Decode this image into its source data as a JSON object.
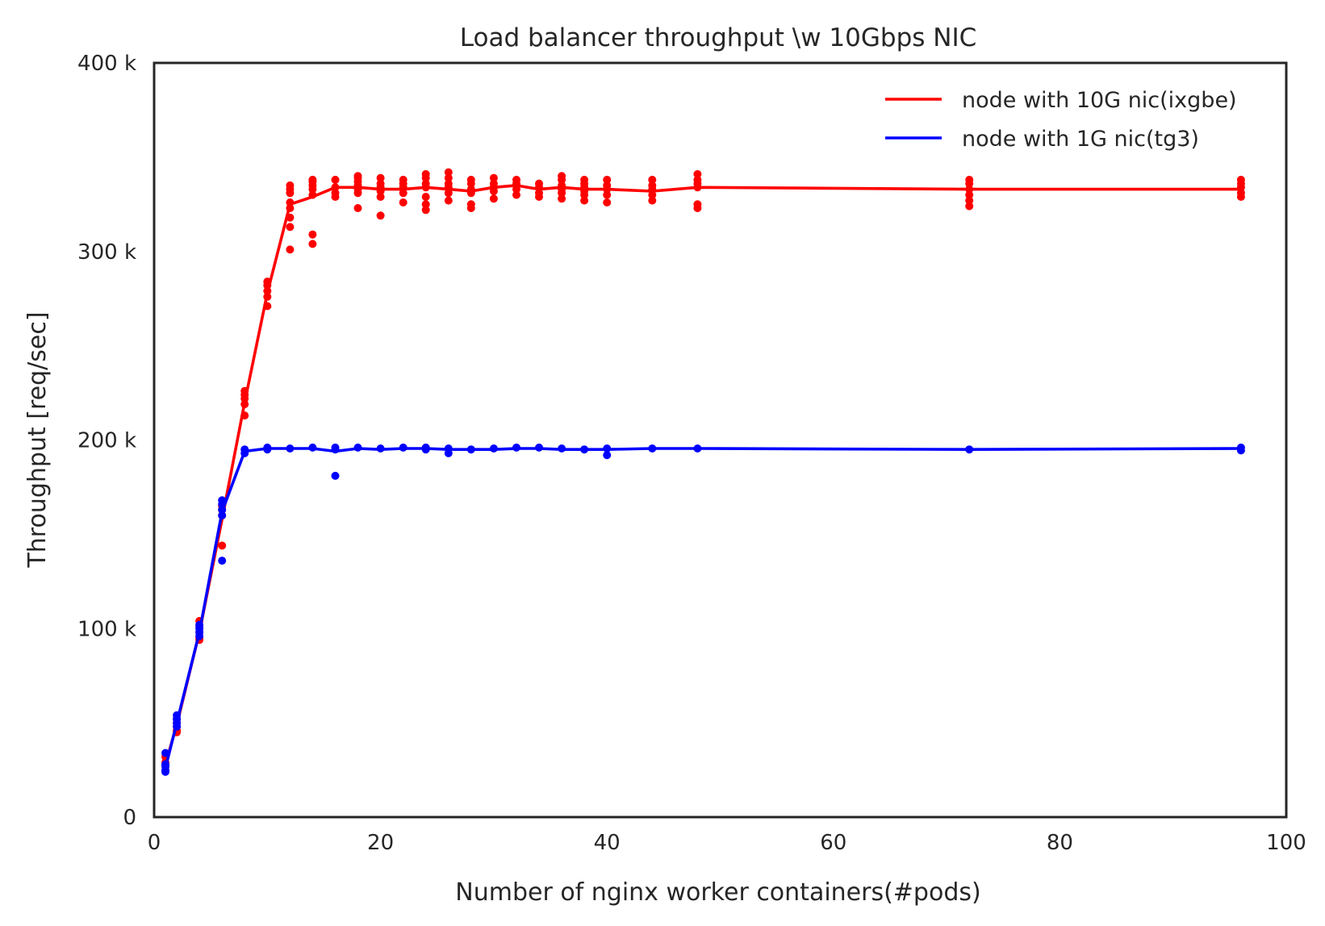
{
  "chart_data": {
    "type": "scatter",
    "title": "Load balancer throughput \\w 10Gbps NIC",
    "xlabel": "Number of nginx worker containers(#pods)",
    "ylabel": "Throughput [req/sec]",
    "xlim": [
      0,
      100
    ],
    "ylim": [
      0,
      400000
    ],
    "xticks": [
      0,
      20,
      40,
      60,
      80,
      100
    ],
    "xtick_labels": [
      "0",
      "20",
      "40",
      "60",
      "80",
      "100"
    ],
    "yticks": [
      0,
      100000,
      200000,
      300000,
      400000
    ],
    "ytick_labels": [
      "0",
      "100 k",
      "200 k",
      "300 k",
      "400 k"
    ],
    "grid": false,
    "legend_position": "top-right",
    "series": [
      {
        "name": "node with 10G nic(ixgbe)",
        "color": "#ff0000",
        "line": {
          "x": [
            1,
            2,
            4,
            6,
            8,
            10,
            12,
            14,
            16,
            18,
            20,
            22,
            24,
            26,
            28,
            30,
            32,
            34,
            36,
            38,
            40,
            44,
            48,
            72,
            96
          ],
          "y": [
            28000,
            49000,
            98000,
            158000,
            220000,
            278000,
            325000,
            329000,
            334000,
            334000,
            333000,
            333000,
            334000,
            333000,
            332000,
            334000,
            335000,
            333000,
            334000,
            333000,
            333000,
            332000,
            334000,
            333000,
            333000
          ]
        },
        "points": [
          [
            1,
            27000
          ],
          [
            1,
            29000
          ],
          [
            1,
            32000
          ],
          [
            2,
            45000
          ],
          [
            2,
            46000
          ],
          [
            2,
            48000
          ],
          [
            2,
            50000
          ],
          [
            2,
            52000
          ],
          [
            4,
            94000
          ],
          [
            4,
            95000
          ],
          [
            4,
            98000
          ],
          [
            4,
            101000
          ],
          [
            4,
            104000
          ],
          [
            6,
            144000
          ],
          [
            6,
            160000
          ],
          [
            6,
            163000
          ],
          [
            6,
            165000
          ],
          [
            8,
            213000
          ],
          [
            8,
            219000
          ],
          [
            8,
            222000
          ],
          [
            8,
            224000
          ],
          [
            8,
            226000
          ],
          [
            10,
            271000
          ],
          [
            10,
            276000
          ],
          [
            10,
            279000
          ],
          [
            10,
            282000
          ],
          [
            10,
            284000
          ],
          [
            12,
            301000
          ],
          [
            12,
            313000
          ],
          [
            12,
            318000
          ],
          [
            12,
            323000
          ],
          [
            12,
            326000
          ],
          [
            12,
            331000
          ],
          [
            12,
            333000
          ],
          [
            12,
            335000
          ],
          [
            14,
            304000
          ],
          [
            14,
            309000
          ],
          [
            14,
            330000
          ],
          [
            14,
            333000
          ],
          [
            14,
            335000
          ],
          [
            14,
            337000
          ],
          [
            14,
            338000
          ],
          [
            16,
            329000
          ],
          [
            16,
            331000
          ],
          [
            16,
            334000
          ],
          [
            16,
            338000
          ],
          [
            18,
            323000
          ],
          [
            18,
            331000
          ],
          [
            18,
            333000
          ],
          [
            18,
            335000
          ],
          [
            18,
            337000
          ],
          [
            18,
            339000
          ],
          [
            18,
            340000
          ],
          [
            20,
            319000
          ],
          [
            20,
            329000
          ],
          [
            20,
            332000
          ],
          [
            20,
            334000
          ],
          [
            20,
            336000
          ],
          [
            20,
            339000
          ],
          [
            22,
            326000
          ],
          [
            22,
            331000
          ],
          [
            22,
            334000
          ],
          [
            22,
            336000
          ],
          [
            22,
            338000
          ],
          [
            24,
            322000
          ],
          [
            24,
            325000
          ],
          [
            24,
            329000
          ],
          [
            24,
            334000
          ],
          [
            24,
            336000
          ],
          [
            24,
            339000
          ],
          [
            24,
            341000
          ],
          [
            26,
            327000
          ],
          [
            26,
            331000
          ],
          [
            26,
            334000
          ],
          [
            26,
            336000
          ],
          [
            26,
            339000
          ],
          [
            26,
            342000
          ],
          [
            28,
            323000
          ],
          [
            28,
            325000
          ],
          [
            28,
            331000
          ],
          [
            28,
            333000
          ],
          [
            28,
            336000
          ],
          [
            28,
            338000
          ],
          [
            30,
            328000
          ],
          [
            30,
            332000
          ],
          [
            30,
            334000
          ],
          [
            30,
            336000
          ],
          [
            30,
            339000
          ],
          [
            32,
            330000
          ],
          [
            32,
            333000
          ],
          [
            32,
            336000
          ],
          [
            32,
            338000
          ],
          [
            34,
            329000
          ],
          [
            34,
            331000
          ],
          [
            34,
            334000
          ],
          [
            34,
            336000
          ],
          [
            36,
            328000
          ],
          [
            36,
            331000
          ],
          [
            36,
            333000
          ],
          [
            36,
            335000
          ],
          [
            36,
            338000
          ],
          [
            36,
            340000
          ],
          [
            38,
            327000
          ],
          [
            38,
            330000
          ],
          [
            38,
            332000
          ],
          [
            38,
            334000
          ],
          [
            38,
            336000
          ],
          [
            38,
            338000
          ],
          [
            40,
            326000
          ],
          [
            40,
            330000
          ],
          [
            40,
            333000
          ],
          [
            40,
            335000
          ],
          [
            40,
            338000
          ],
          [
            44,
            327000
          ],
          [
            44,
            330000
          ],
          [
            44,
            333000
          ],
          [
            44,
            335000
          ],
          [
            44,
            338000
          ],
          [
            48,
            323000
          ],
          [
            48,
            325000
          ],
          [
            48,
            334000
          ],
          [
            48,
            336000
          ],
          [
            48,
            338000
          ],
          [
            48,
            341000
          ],
          [
            72,
            324000
          ],
          [
            72,
            327000
          ],
          [
            72,
            330000
          ],
          [
            72,
            333000
          ],
          [
            72,
            336000
          ],
          [
            72,
            338000
          ],
          [
            96,
            329000
          ],
          [
            96,
            331000
          ],
          [
            96,
            334000
          ],
          [
            96,
            336000
          ],
          [
            96,
            338000
          ]
        ]
      },
      {
        "name": "node with 1G nic(tg3)",
        "color": "#0000ff",
        "line": {
          "x": [
            1,
            2,
            4,
            6,
            8,
            10,
            12,
            14,
            16,
            18,
            20,
            22,
            24,
            26,
            28,
            30,
            32,
            34,
            36,
            38,
            40,
            44,
            48,
            72,
            96
          ],
          "y": [
            26000,
            50000,
            98000,
            162000,
            194000,
            195500,
            195500,
            195500,
            194000,
            195500,
            195000,
            195500,
            195500,
            195000,
            195000,
            195000,
            195500,
            195500,
            195000,
            195000,
            195000,
            195500,
            195500,
            195000,
            195500
          ]
        },
        "points": [
          [
            1,
            24000
          ],
          [
            1,
            25000
          ],
          [
            1,
            27000
          ],
          [
            1,
            28000
          ],
          [
            1,
            34000
          ],
          [
            2,
            48000
          ],
          [
            2,
            50000
          ],
          [
            2,
            52000
          ],
          [
            2,
            54000
          ],
          [
            4,
            96000
          ],
          [
            4,
            98000
          ],
          [
            4,
            100000
          ],
          [
            4,
            102000
          ],
          [
            6,
            136000
          ],
          [
            6,
            160000
          ],
          [
            6,
            163000
          ],
          [
            6,
            166000
          ],
          [
            6,
            168000
          ],
          [
            8,
            193000
          ],
          [
            8,
            195000
          ],
          [
            10,
            195000
          ],
          [
            10,
            196000
          ],
          [
            12,
            195500
          ],
          [
            14,
            196000
          ],
          [
            16,
            181000
          ],
          [
            16,
            195000
          ],
          [
            16,
            196000
          ],
          [
            18,
            196000
          ],
          [
            20,
            195500
          ],
          [
            22,
            196000
          ],
          [
            24,
            195000
          ],
          [
            24,
            196000
          ],
          [
            26,
            193000
          ],
          [
            26,
            195500
          ],
          [
            28,
            195000
          ],
          [
            30,
            195500
          ],
          [
            32,
            196000
          ],
          [
            34,
            196000
          ],
          [
            36,
            195500
          ],
          [
            38,
            195000
          ],
          [
            40,
            192000
          ],
          [
            40,
            195500
          ],
          [
            44,
            195500
          ],
          [
            48,
            195500
          ],
          [
            72,
            195000
          ],
          [
            96,
            194500
          ],
          [
            96,
            196000
          ]
        ]
      }
    ]
  },
  "colors": {
    "background": "#ffffff",
    "frame": "#262626",
    "text": "#262626"
  }
}
